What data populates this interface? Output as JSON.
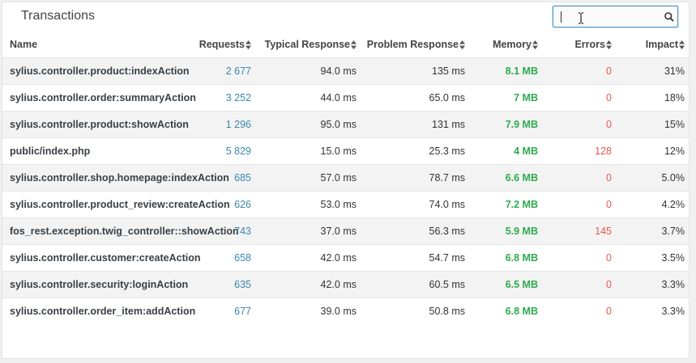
{
  "panel": {
    "title": "Transactions"
  },
  "search": {
    "value": "",
    "placeholder": ""
  },
  "table": {
    "columns": {
      "name": "Name",
      "requests": "Requests",
      "typical": "Typical Response",
      "problem": "Problem Response",
      "memory": "Memory",
      "errors": "Errors",
      "impact": "Impact"
    },
    "rows": [
      {
        "name": "sylius.controller.product:indexAction",
        "requests": "2 677",
        "typical": "94.0 ms",
        "problem": "135 ms",
        "memory": "8.1 MB",
        "errors": "0",
        "impact": "31%"
      },
      {
        "name": "sylius.controller.order:summaryAction",
        "requests": "3 252",
        "typical": "44.0 ms",
        "problem": "65.0 ms",
        "memory": "7 MB",
        "errors": "0",
        "impact": "18%"
      },
      {
        "name": "sylius.controller.product:showAction",
        "requests": "1 296",
        "typical": "95.0 ms",
        "problem": "131 ms",
        "memory": "7.9 MB",
        "errors": "0",
        "impact": "15%"
      },
      {
        "name": "public/index.php",
        "requests": "5 829",
        "typical": "15.0 ms",
        "problem": "25.3 ms",
        "memory": "4 MB",
        "errors": "128",
        "impact": "12%"
      },
      {
        "name": "sylius.controller.shop.homepage:indexAction",
        "requests": "685",
        "typical": "57.0 ms",
        "problem": "78.7 ms",
        "memory": "6.6 MB",
        "errors": "0",
        "impact": "5.0%"
      },
      {
        "name": "sylius.controller.product_review:createAction",
        "requests": "626",
        "typical": "53.0 ms",
        "problem": "74.0 ms",
        "memory": "7.2 MB",
        "errors": "0",
        "impact": "4.2%"
      },
      {
        "name": "fos_rest.exception.twig_controller::showAction",
        "requests": "743",
        "typical": "37.0 ms",
        "problem": "56.3 ms",
        "memory": "5.9 MB",
        "errors": "145",
        "impact": "3.7%"
      },
      {
        "name": "sylius.controller.customer:createAction",
        "requests": "658",
        "typical": "42.0 ms",
        "problem": "54.7 ms",
        "memory": "6.8 MB",
        "errors": "0",
        "impact": "3.5%"
      },
      {
        "name": "sylius.controller.security:loginAction",
        "requests": "635",
        "typical": "42.0 ms",
        "problem": "60.5 ms",
        "memory": "6.5 MB",
        "errors": "0",
        "impact": "3.3%"
      },
      {
        "name": "sylius.controller.order_item:addAction",
        "requests": "677",
        "typical": "39.0 ms",
        "problem": "50.8 ms",
        "memory": "6.8 MB",
        "errors": "0",
        "impact": "3.3%"
      }
    ]
  },
  "icons": {
    "search": "search-icon",
    "sort": "sort-icon",
    "cursor": "text-cursor-icon"
  },
  "colors": {
    "requests": "#3a87ad",
    "memory": "#2eaa4f",
    "errors": "#e8574c",
    "search_border": "#4a90c2"
  }
}
